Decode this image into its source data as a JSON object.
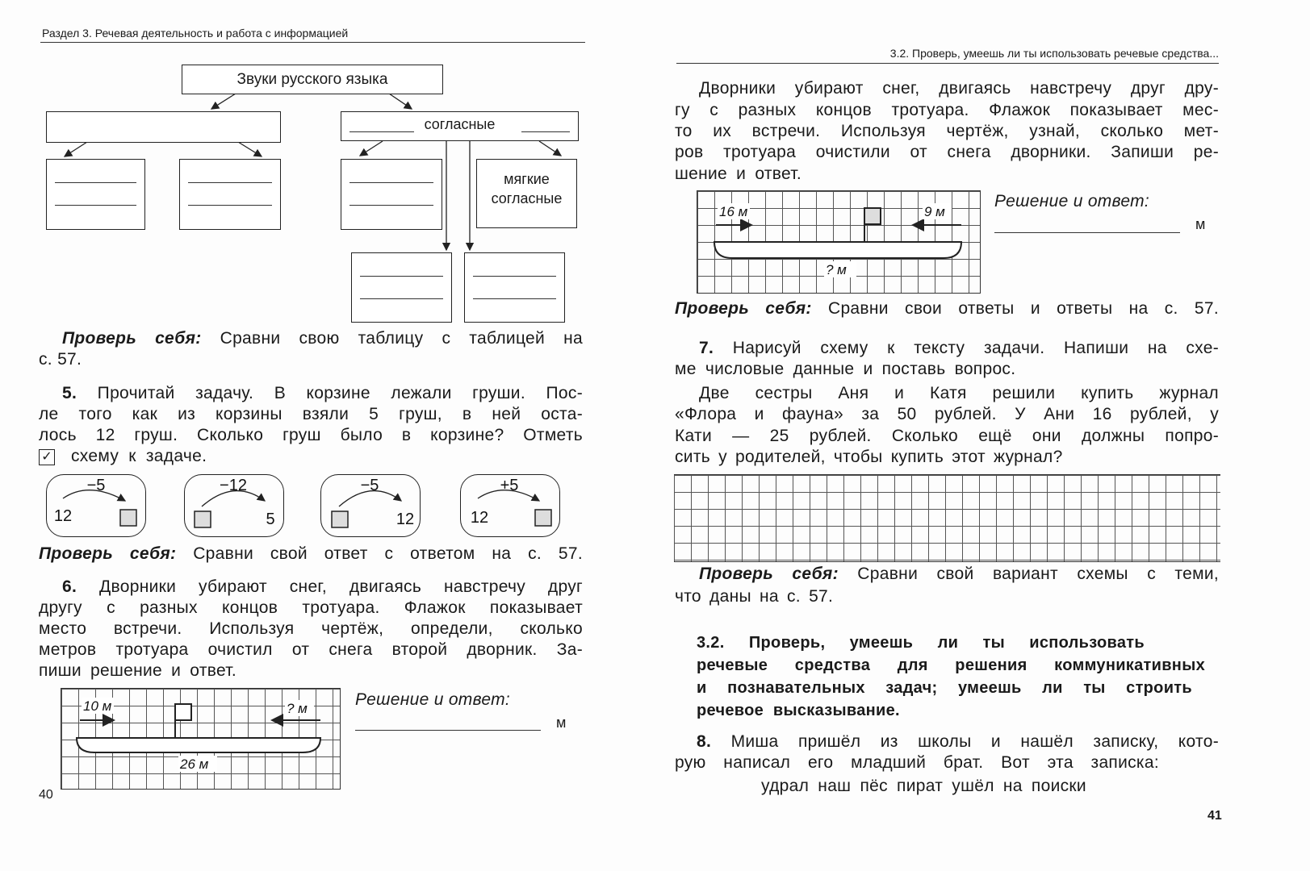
{
  "left": {
    "header": "Раздел 3. Речевая деятельность и работа с информацией",
    "diagram": {
      "root": "Звуки русского языка",
      "consonants": "согласные",
      "soft": [
        "мягкие",
        "согласные"
      ]
    },
    "check1": {
      "label": "Проверь себя:",
      "lines": [
        " Сравни свою таблицу с таблицей на",
        "с. 57."
      ]
    },
    "task5": {
      "num": "5.",
      "lines": [
        " Прочитай задачу. В корзине лежали груши. Пос-",
        "ле того как из корзины взяли 5 груш, в ней оста-",
        "лось 12 груш. Сколько груш было в корзине? Отметь"
      ],
      "checkbox": "✓",
      "last": "схему к задаче."
    },
    "schemes": [
      {
        "op": "−5",
        "left": "12",
        "right": ""
      },
      {
        "op": "−12",
        "left": "",
        "right": "5"
      },
      {
        "op": "−5",
        "left": "",
        "right": "12"
      },
      {
        "op": "+5",
        "left": "12",
        "right": ""
      }
    ],
    "check2": {
      "label": "Проверь себя:",
      "text": " Сравни свой ответ с ответом на с. 57."
    },
    "task6": {
      "num": "6.",
      "lines": [
        " Дворники убирают снег, двигаясь навстречу друг",
        "другу с разных концов тротуара. Флажок показывает",
        "место встречи. Используя чертёж, определи, сколько",
        "метров тротуара очистил от снега второй дворник. За-",
        "пиши решение и ответ."
      ]
    },
    "drawing": {
      "a": "10 м",
      "b": "? м",
      "total": "26 м"
    },
    "answer": {
      "label": "Решение и ответ:",
      "unit": "м"
    },
    "page_number": "40"
  },
  "right": {
    "header": "3.2. Проверь, умеешь ли ты использовать речевые средства...",
    "para": [
      "Дворники убирают снег, двигаясь навстречу друг дру-",
      "гу с разных концов тротуара. Флажок показывает мес-",
      "то их встречи. Используя чертёж, узнай, сколько мет-",
      "ров тротуара очистили от снега дворники. Запиши ре-",
      "шение и ответ."
    ],
    "drawing": {
      "a": "16 м",
      "b": "9 м",
      "total": "? м"
    },
    "answer": {
      "label": "Решение и ответ:",
      "unit": "м"
    },
    "check1": {
      "label": "Проверь себя:",
      "text": " Сравни свои ответы и ответы на с. 57."
    },
    "task7": {
      "num": "7.",
      "lines": [
        " Нарисуй схему к тексту задачи. Напиши на схе-",
        "ме числовые данные и поставь вопрос."
      ],
      "story": [
        "Две сестры Аня и Катя решили купить журнал",
        "«Флора и фауна» за 50 рублей. У Ани 16 рублей, у",
        "Кати — 25 рублей. Сколько ещё они должны попро-",
        "сить у родителей, чтобы купить этот журнал?"
      ]
    },
    "check2": {
      "label": "Проверь себя:",
      "lines": [
        " Сравни свой вариант схемы с теми,",
        "что даны на с. 57."
      ]
    },
    "section": [
      "3.2. Проверь, умеешь ли ты использовать",
      "речевые средства для решения коммуникативных",
      "и познавательных задач; умеешь ли ты строить",
      "речевое высказывание."
    ],
    "task8": {
      "num": "8.",
      "lines": [
        " Миша пришёл из школы и нашёл записку, кото-",
        "рую написал его младший брат. Вот эта записка:"
      ],
      "note": "удрал наш пёс пират ушёл на поиски"
    },
    "page_number": "41"
  }
}
